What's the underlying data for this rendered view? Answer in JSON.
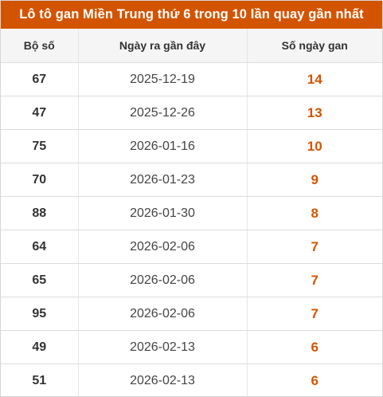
{
  "title": "Lô tô gan Miền Trung thứ 6 trong 10 lần quay gần nhất",
  "columns": [
    "Bộ số",
    "Ngày ra gần đây",
    "Số ngày gan"
  ],
  "accent_color": "#d35400",
  "rows": [
    {
      "number": "67",
      "date": "2025-12-19",
      "days": "14"
    },
    {
      "number": "47",
      "date": "2025-12-26",
      "days": "13"
    },
    {
      "number": "75",
      "date": "2026-01-16",
      "days": "10"
    },
    {
      "number": "70",
      "date": "2026-01-23",
      "days": "9"
    },
    {
      "number": "88",
      "date": "2026-01-30",
      "days": "8"
    },
    {
      "number": "64",
      "date": "2026-02-06",
      "days": "7"
    },
    {
      "number": "65",
      "date": "2026-02-06",
      "days": "7"
    },
    {
      "number": "95",
      "date": "2026-02-06",
      "days": "7"
    },
    {
      "number": "49",
      "date": "2026-02-13",
      "days": "6"
    },
    {
      "number": "51",
      "date": "2026-02-13",
      "days": "6"
    }
  ]
}
